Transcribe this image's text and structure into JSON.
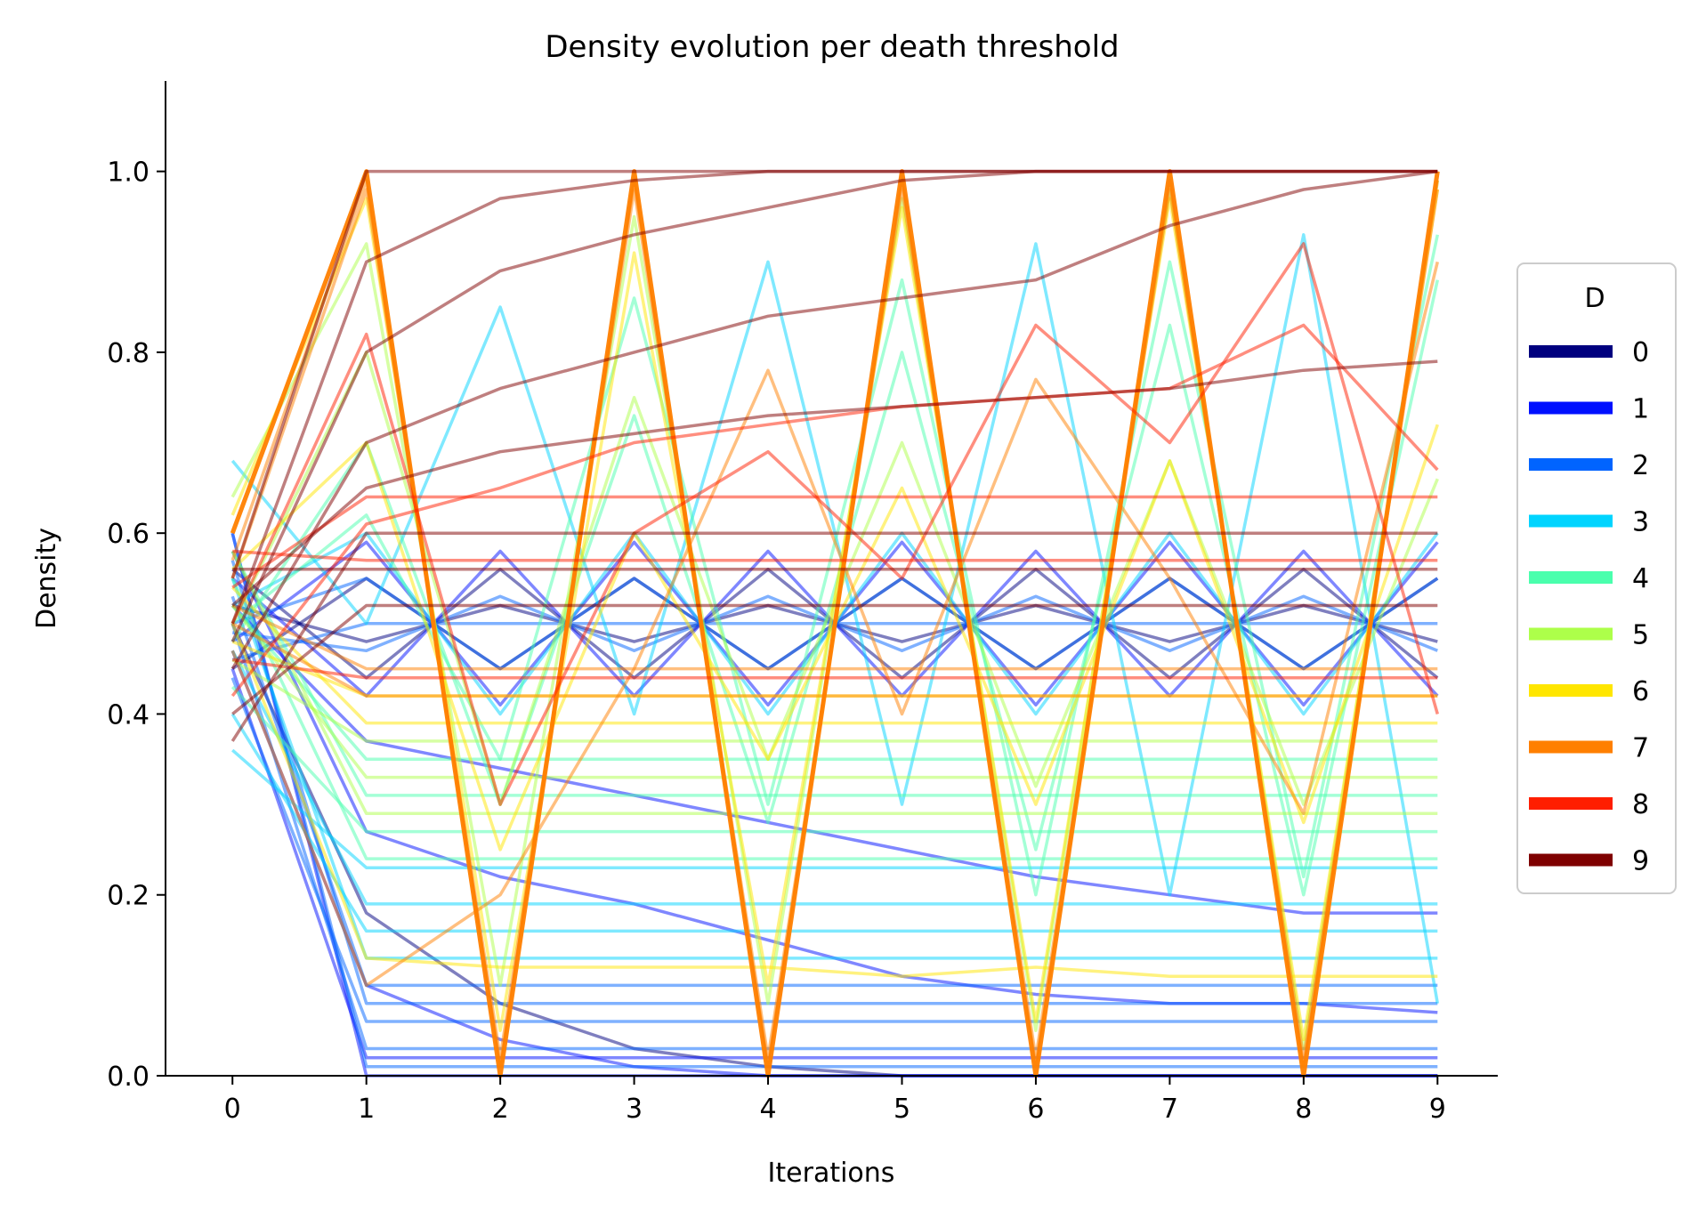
{
  "chart_data": {
    "type": "line",
    "title": "Density evolution per death threshold",
    "xlabel": "Iterations",
    "ylabel": "Density",
    "x": [
      0,
      1,
      2,
      3,
      4,
      5,
      6,
      7,
      8,
      9
    ],
    "xlim": [
      -0.5,
      9.45
    ],
    "ylim": [
      0.0,
      1.1
    ],
    "xticks": [
      "0",
      "1",
      "2",
      "3",
      "4",
      "5",
      "6",
      "7",
      "8",
      "9"
    ],
    "yticks": [
      "0.0",
      "0.2",
      "0.4",
      "0.6",
      "0.8",
      "1.0"
    ],
    "grid": false,
    "legend": {
      "title": "D",
      "placement": "right",
      "entries": [
        {
          "label": "0",
          "color": "#00007f"
        },
        {
          "label": "1",
          "color": "#0010ff"
        },
        {
          "label": "2",
          "color": "#0064ff"
        },
        {
          "label": "3",
          "color": "#00d4ff"
        },
        {
          "label": "4",
          "color": "#4affad"
        },
        {
          "label": "5",
          "color": "#adff4a"
        },
        {
          "label": "6",
          "color": "#ffe600"
        },
        {
          "label": "7",
          "color": "#ff7f00"
        },
        {
          "label": "8",
          "color": "#ff1e00"
        },
        {
          "label": "9",
          "color": "#7f0000"
        }
      ]
    },
    "series": [
      {
        "group": "0",
        "color": "#00007f",
        "values": [
          0.56,
          0.44,
          0.56,
          0.44,
          0.56,
          0.44,
          0.56,
          0.44,
          0.56,
          0.44
        ]
      },
      {
        "group": "0",
        "color": "#00007f",
        "values": [
          0.52,
          0.48,
          0.52,
          0.48,
          0.52,
          0.48,
          0.52,
          0.48,
          0.52,
          0.48
        ]
      },
      {
        "group": "0",
        "color": "#00007f",
        "values": [
          0.45,
          0.55,
          0.45,
          0.55,
          0.45,
          0.55,
          0.45,
          0.55,
          0.45,
          0.55
        ]
      },
      {
        "group": "0",
        "color": "#00007f",
        "values": [
          0.5,
          0.18,
          0.08,
          0.03,
          0.01,
          0.0,
          0.0,
          0.0,
          0.0,
          0.0
        ]
      },
      {
        "group": "1",
        "color": "#0010ff",
        "values": [
          0.6,
          0.0,
          0.0,
          0.0,
          0.0,
          0.0,
          0.0,
          0.0,
          0.0,
          0.0
        ]
      },
      {
        "group": "1",
        "color": "#0010ff",
        "values": [
          0.45,
          0.02,
          0.02,
          0.02,
          0.02,
          0.02,
          0.02,
          0.02,
          0.02,
          0.02
        ]
      },
      {
        "group": "1",
        "color": "#0010ff",
        "values": [
          0.55,
          0.42,
          0.58,
          0.42,
          0.58,
          0.42,
          0.58,
          0.42,
          0.58,
          0.42
        ]
      },
      {
        "group": "1",
        "color": "#0010ff",
        "values": [
          0.48,
          0.59,
          0.41,
          0.59,
          0.41,
          0.59,
          0.41,
          0.59,
          0.41,
          0.59
        ]
      },
      {
        "group": "1",
        "color": "#0010ff",
        "values": [
          0.52,
          0.37,
          0.34,
          0.31,
          0.28,
          0.25,
          0.22,
          0.2,
          0.18,
          0.18
        ]
      },
      {
        "group": "1",
        "color": "#0010ff",
        "values": [
          0.58,
          0.27,
          0.22,
          0.19,
          0.15,
          0.11,
          0.09,
          0.08,
          0.08,
          0.07
        ]
      },
      {
        "group": "1",
        "color": "#0010ff",
        "values": [
          0.47,
          0.1,
          0.04,
          0.01,
          0.0,
          0.0,
          0.0,
          0.0,
          0.0,
          0.0
        ]
      },
      {
        "group": "2",
        "color": "#0064ff",
        "values": [
          0.6,
          0.01,
          0.01,
          0.01,
          0.01,
          0.01,
          0.01,
          0.01,
          0.01,
          0.01
        ]
      },
      {
        "group": "2",
        "color": "#0064ff",
        "values": [
          0.5,
          0.03,
          0.03,
          0.03,
          0.03,
          0.03,
          0.03,
          0.03,
          0.03,
          0.03
        ]
      },
      {
        "group": "2",
        "color": "#0064ff",
        "values": [
          0.44,
          0.06,
          0.06,
          0.06,
          0.06,
          0.06,
          0.06,
          0.06,
          0.06,
          0.06
        ]
      },
      {
        "group": "2",
        "color": "#0064ff",
        "values": [
          0.57,
          0.08,
          0.08,
          0.08,
          0.08,
          0.08,
          0.08,
          0.08,
          0.08,
          0.08
        ]
      },
      {
        "group": "2",
        "color": "#0064ff",
        "values": [
          0.53,
          0.1,
          0.1,
          0.1,
          0.1,
          0.1,
          0.1,
          0.1,
          0.1,
          0.1
        ]
      },
      {
        "group": "2",
        "color": "#0064ff",
        "values": [
          0.5,
          0.55,
          0.45,
          0.55,
          0.45,
          0.55,
          0.45,
          0.55,
          0.45,
          0.55
        ]
      },
      {
        "group": "2",
        "color": "#0064ff",
        "values": [
          0.49,
          0.47,
          0.53,
          0.47,
          0.53,
          0.47,
          0.53,
          0.47,
          0.53,
          0.47
        ]
      },
      {
        "group": "2",
        "color": "#0064ff",
        "values": [
          0.46,
          0.5,
          0.5,
          0.5,
          0.5,
          0.5,
          0.5,
          0.5,
          0.5,
          0.5
        ]
      },
      {
        "group": "3",
        "color": "#00d4ff",
        "values": [
          0.68,
          0.5,
          0.85,
          0.4,
          0.9,
          0.3,
          0.92,
          0.2,
          0.93,
          0.08
        ]
      },
      {
        "group": "3",
        "color": "#00d4ff",
        "values": [
          0.55,
          0.13,
          0.13,
          0.13,
          0.13,
          0.13,
          0.13,
          0.13,
          0.13,
          0.13
        ]
      },
      {
        "group": "3",
        "color": "#00d4ff",
        "values": [
          0.4,
          0.16,
          0.16,
          0.16,
          0.16,
          0.16,
          0.16,
          0.16,
          0.16,
          0.16
        ]
      },
      {
        "group": "3",
        "color": "#00d4ff",
        "values": [
          0.47,
          0.19,
          0.19,
          0.19,
          0.19,
          0.19,
          0.19,
          0.19,
          0.19,
          0.19
        ]
      },
      {
        "group": "3",
        "color": "#00d4ff",
        "values": [
          0.36,
          0.23,
          0.23,
          0.23,
          0.23,
          0.23,
          0.23,
          0.23,
          0.23,
          0.23
        ]
      },
      {
        "group": "3",
        "color": "#00d4ff",
        "values": [
          0.52,
          0.6,
          0.4,
          0.6,
          0.4,
          0.6,
          0.4,
          0.6,
          0.4,
          0.6
        ]
      },
      {
        "group": "4",
        "color": "#4affad",
        "values": [
          0.5,
          0.62,
          0.35,
          0.86,
          0.3,
          0.88,
          0.2,
          0.9,
          0.22,
          0.93
        ]
      },
      {
        "group": "4",
        "color": "#4affad",
        "values": [
          0.55,
          0.24,
          0.24,
          0.24,
          0.24,
          0.24,
          0.24,
          0.24,
          0.24,
          0.24
        ]
      },
      {
        "group": "4",
        "color": "#4affad",
        "values": [
          0.43,
          0.27,
          0.27,
          0.27,
          0.27,
          0.27,
          0.27,
          0.27,
          0.27,
          0.27
        ]
      },
      {
        "group": "4",
        "color": "#4affad",
        "values": [
          0.58,
          0.31,
          0.31,
          0.31,
          0.31,
          0.31,
          0.31,
          0.31,
          0.31,
          0.31
        ]
      },
      {
        "group": "4",
        "color": "#4affad",
        "values": [
          0.48,
          0.7,
          0.3,
          0.73,
          0.28,
          0.8,
          0.25,
          0.83,
          0.2,
          0.88
        ]
      },
      {
        "group": "4",
        "color": "#4affad",
        "values": [
          0.52,
          0.35,
          0.35,
          0.35,
          0.35,
          0.35,
          0.35,
          0.35,
          0.35,
          0.35
        ]
      },
      {
        "group": "5",
        "color": "#adff4a",
        "values": [
          0.64,
          0.92,
          0.1,
          0.95,
          0.08,
          0.97,
          0.05,
          0.98,
          0.03,
          0.99
        ]
      },
      {
        "group": "5",
        "color": "#adff4a",
        "values": [
          0.52,
          0.33,
          0.33,
          0.33,
          0.33,
          0.33,
          0.33,
          0.33,
          0.33,
          0.33
        ]
      },
      {
        "group": "5",
        "color": "#adff4a",
        "values": [
          0.46,
          0.37,
          0.37,
          0.37,
          0.37,
          0.37,
          0.37,
          0.37,
          0.37,
          0.37
        ]
      },
      {
        "group": "5",
        "color": "#adff4a",
        "values": [
          0.58,
          0.29,
          0.29,
          0.29,
          0.29,
          0.29,
          0.29,
          0.29,
          0.29,
          0.29
        ]
      },
      {
        "group": "5",
        "color": "#adff4a",
        "values": [
          0.5,
          0.8,
          0.3,
          0.75,
          0.35,
          0.7,
          0.32,
          0.68,
          0.3,
          0.66
        ]
      },
      {
        "group": "6",
        "color": "#ffe600",
        "values": [
          0.62,
          0.97,
          0.05,
          0.91,
          0.1,
          0.96,
          0.06,
          0.97,
          0.04,
          0.98
        ]
      },
      {
        "group": "6",
        "color": "#ffe600",
        "values": [
          0.54,
          0.39,
          0.39,
          0.39,
          0.39,
          0.39,
          0.39,
          0.39,
          0.39,
          0.39
        ]
      },
      {
        "group": "6",
        "color": "#ffe600",
        "values": [
          0.48,
          0.42,
          0.42,
          0.42,
          0.42,
          0.42,
          0.42,
          0.42,
          0.42,
          0.42
        ]
      },
      {
        "group": "6",
        "color": "#ffe600",
        "values": [
          0.5,
          0.13,
          0.12,
          0.12,
          0.12,
          0.11,
          0.12,
          0.11,
          0.11,
          0.11
        ]
      },
      {
        "group": "6",
        "color": "#ffe600",
        "values": [
          0.56,
          0.7,
          0.25,
          0.6,
          0.35,
          0.65,
          0.3,
          0.68,
          0.28,
          0.72
        ]
      },
      {
        "group": "7",
        "color": "#ff7f00",
        "values": [
          0.6,
          1.0,
          0.0,
          1.0,
          0.0,
          1.0,
          0.0,
          1.0,
          0.0,
          1.0
        ]
      },
      {
        "group": "7",
        "color": "#ff7f00",
        "values": [
          0.57,
          0.99,
          0.01,
          0.99,
          0.01,
          0.99,
          0.01,
          0.99,
          0.01,
          0.99
        ]
      },
      {
        "group": "7",
        "color": "#ff7f00",
        "values": [
          0.55,
          0.98,
          0.02,
          0.98,
          0.02,
          0.98,
          0.02,
          0.98,
          0.02,
          0.98
        ]
      },
      {
        "group": "7",
        "color": "#ff7f00",
        "values": [
          0.52,
          0.45,
          0.45,
          0.45,
          0.45,
          0.45,
          0.45,
          0.45,
          0.45,
          0.45
        ]
      },
      {
        "group": "7",
        "color": "#ff7f00",
        "values": [
          0.5,
          0.42,
          0.42,
          0.42,
          0.42,
          0.42,
          0.42,
          0.42,
          0.42,
          0.42
        ]
      },
      {
        "group": "7",
        "color": "#ff7f00",
        "values": [
          0.47,
          0.1,
          0.2,
          0.45,
          0.78,
          0.4,
          0.77,
          0.55,
          0.29,
          0.9
        ]
      },
      {
        "group": "8",
        "color": "#ff1e00",
        "values": [
          0.5,
          0.82,
          0.3,
          0.6,
          0.69,
          0.55,
          0.83,
          0.7,
          0.92,
          0.4
        ]
      },
      {
        "group": "8",
        "color": "#ff1e00",
        "values": [
          0.54,
          0.64,
          0.64,
          0.64,
          0.64,
          0.64,
          0.64,
          0.64,
          0.64,
          0.64
        ]
      },
      {
        "group": "8",
        "color": "#ff1e00",
        "values": [
          0.46,
          0.44,
          0.44,
          0.44,
          0.44,
          0.44,
          0.44,
          0.44,
          0.44,
          0.44
        ]
      },
      {
        "group": "8",
        "color": "#ff1e00",
        "values": [
          0.58,
          0.57,
          0.57,
          0.57,
          0.57,
          0.57,
          0.57,
          0.57,
          0.57,
          0.57
        ]
      },
      {
        "group": "8",
        "color": "#ff1e00",
        "values": [
          0.42,
          0.61,
          0.65,
          0.7,
          0.72,
          0.74,
          0.75,
          0.76,
          0.83,
          0.67
        ]
      },
      {
        "group": "9",
        "color": "#7f0000",
        "values": [
          0.55,
          1.0,
          1.0,
          1.0,
          1.0,
          1.0,
          1.0,
          1.0,
          1.0,
          1.0
        ]
      },
      {
        "group": "9",
        "color": "#7f0000",
        "values": [
          0.5,
          0.9,
          0.97,
          0.99,
          1.0,
          1.0,
          1.0,
          1.0,
          1.0,
          1.0
        ]
      },
      {
        "group": "9",
        "color": "#7f0000",
        "values": [
          0.48,
          0.8,
          0.89,
          0.93,
          0.96,
          0.99,
          1.0,
          1.0,
          1.0,
          1.0
        ]
      },
      {
        "group": "9",
        "color": "#7f0000",
        "values": [
          0.45,
          0.7,
          0.76,
          0.8,
          0.84,
          0.86,
          0.88,
          0.94,
          0.98,
          1.0
        ]
      },
      {
        "group": "9",
        "color": "#7f0000",
        "values": [
          0.52,
          0.65,
          0.69,
          0.71,
          0.73,
          0.74,
          0.75,
          0.76,
          0.78,
          0.79
        ]
      },
      {
        "group": "9",
        "color": "#7f0000",
        "values": [
          0.56,
          0.56,
          0.56,
          0.56,
          0.56,
          0.56,
          0.56,
          0.56,
          0.56,
          0.56
        ]
      },
      {
        "group": "9",
        "color": "#7f0000",
        "values": [
          0.37,
          0.6,
          0.6,
          0.6,
          0.6,
          0.6,
          0.6,
          0.6,
          0.6,
          0.6
        ]
      },
      {
        "group": "9",
        "color": "#7f0000",
        "values": [
          0.4,
          0.52,
          0.52,
          0.52,
          0.52,
          0.52,
          0.52,
          0.52,
          0.52,
          0.52
        ]
      }
    ]
  }
}
